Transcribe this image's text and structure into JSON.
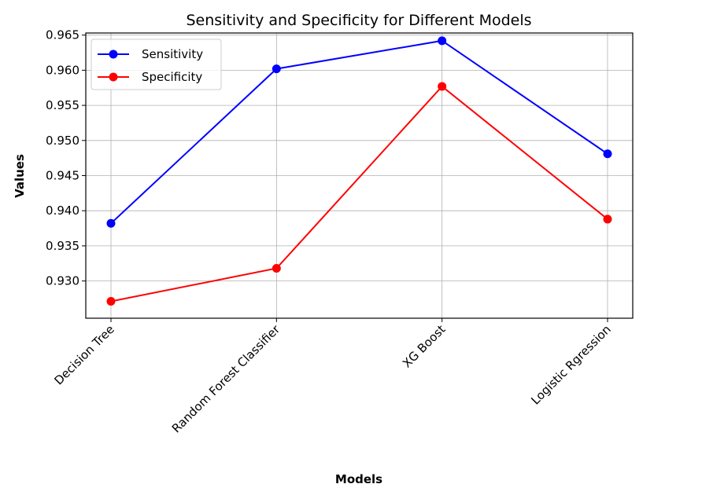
{
  "chart_data": {
    "type": "line",
    "title": "Sensitivity and Specificity for Different Models",
    "xlabel": "Models",
    "ylabel": "Values",
    "categories": [
      "Decision Tree",
      "Random Forest Classifier",
      "XG Boost",
      "Logistic Rgression"
    ],
    "ylim": [
      0.9247,
      0.9653
    ],
    "yticks": [
      "0.930",
      "0.935",
      "0.940",
      "0.945",
      "0.950",
      "0.955",
      "0.960",
      "0.965"
    ],
    "grid": true,
    "legend": {
      "position": "top-left"
    },
    "series": [
      {
        "name": "Sensitivity",
        "color": "#0000ff",
        "marker": "circle",
        "values": [
          0.9382,
          0.9602,
          0.9642,
          0.9481
        ]
      },
      {
        "name": "Specificity",
        "color": "#ff0000",
        "marker": "circle",
        "values": [
          0.9271,
          0.9318,
          0.9577,
          0.9388
        ]
      }
    ]
  }
}
